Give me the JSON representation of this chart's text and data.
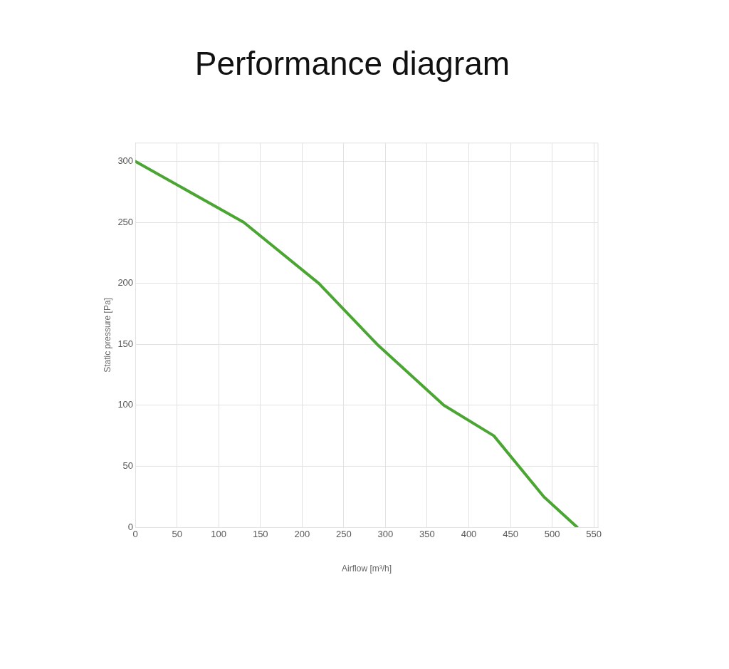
{
  "chart_data": {
    "type": "line",
    "title": "Performance diagram",
    "xlabel": "Airflow [m³/h]",
    "ylabel": "Static pressure [Pa]",
    "x": [
      0,
      130,
      220,
      290,
      370,
      430,
      490,
      530
    ],
    "series": [
      {
        "color": "#4aa532",
        "values": [
          300,
          250,
          200,
          150,
          100,
          75,
          25,
          0
        ]
      }
    ],
    "xlim": [
      0,
      555
    ],
    "xticks": [
      0,
      50,
      100,
      150,
      200,
      250,
      300,
      350,
      400,
      450,
      500,
      550
    ],
    "ylim": [
      0,
      315
    ],
    "yticks": [
      0,
      50,
      100,
      150,
      200,
      250,
      300
    ],
    "grid": true,
    "legend": false,
    "marker": "none",
    "line_style": "solid"
  }
}
